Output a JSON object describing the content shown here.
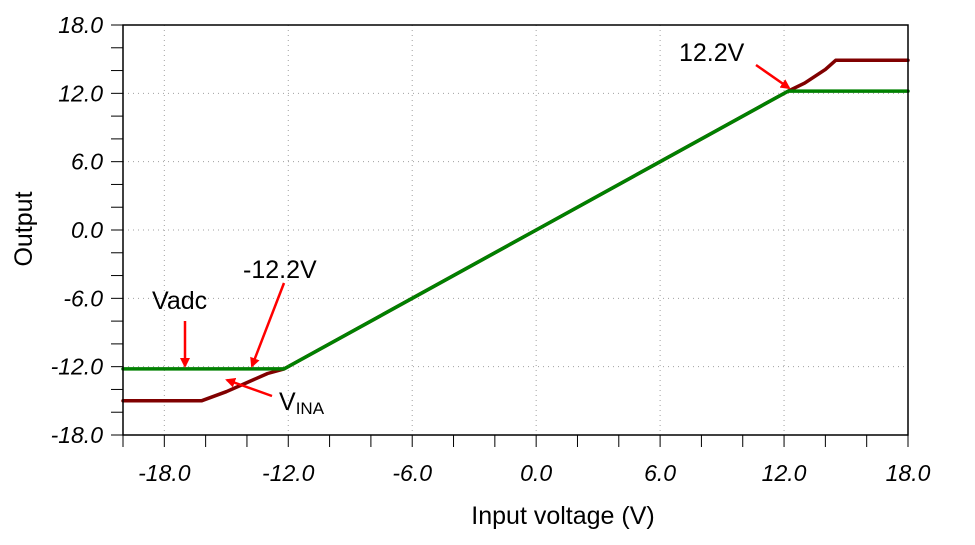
{
  "chart_data": {
    "type": "line",
    "xlabel": "Input voltage (V)",
    "ylabel": "Output",
    "xlim": [
      -20,
      18
    ],
    "ylim": [
      -18,
      18
    ],
    "grid": true,
    "x_ticks": [
      -18,
      -12,
      -6,
      0,
      6,
      12,
      18
    ],
    "x_tick_labels": [
      "-18.0",
      "-12.0",
      "-6.0",
      "0.0",
      "6.0",
      "12.0",
      "18.0"
    ],
    "y_ticks": [
      18,
      12,
      6,
      0,
      -6,
      -12,
      -18
    ],
    "y_tick_labels": [
      "18.0",
      "12.0",
      "6.0",
      "0.0",
      "-6.0",
      "-12.0",
      "-18.0"
    ],
    "series": [
      {
        "color": "#800000",
        "x": [
          -20,
          -16.2,
          -15.0,
          -14.0,
          -13.0,
          -12.2,
          -6,
          0,
          6,
          12.2,
          13.0,
          14.0,
          14.5,
          18
        ],
        "y": [
          -15,
          -15,
          -14.2,
          -13.4,
          -12.6,
          -12.2,
          -6,
          0,
          6,
          12.2,
          12.9,
          14.1,
          14.9,
          14.9
        ]
      },
      {
        "color": "#008000",
        "x": [
          -20,
          -12.2,
          0,
          12.2,
          18
        ],
        "y": [
          -12.2,
          -12.2,
          0,
          12.2,
          12.2
        ]
      }
    ],
    "annotations": [
      {
        "text": "12.2V",
        "target": [
          12.2,
          12.2
        ]
      },
      {
        "text": "-12.2V",
        "target": [
          -12.2,
          -12.2
        ]
      },
      {
        "text": "Vadc",
        "target": [
          -16.2,
          -12.2
        ]
      },
      {
        "text": "V",
        "sub": "INA",
        "target": [
          -14.0,
          -13.4
        ]
      }
    ],
    "annotation_color": "#ff0000"
  }
}
